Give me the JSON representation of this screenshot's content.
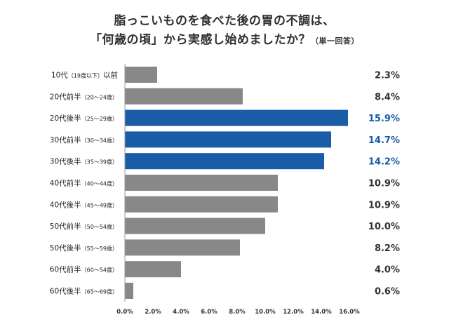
{
  "title_line1": "脂っこいものを食べた後の胃の不調は、",
  "title_line2": "「何歳の頃」から実感し始めましたか？",
  "title_suffix": "（単一回答）",
  "colors": {
    "gray": "#888888",
    "blue": "#1a5ca8",
    "value_blue": "#1a5ca8",
    "value_dark": "#333333"
  },
  "chart_data": {
    "type": "bar",
    "orientation": "horizontal",
    "categories": [
      {
        "main": "10代",
        "paren": "（19歳以下）",
        "after": "以前"
      },
      {
        "main": "20代前半",
        "paren": "（20～24歳）",
        "after": ""
      },
      {
        "main": "20代後半",
        "paren": "（25～29歳）",
        "after": ""
      },
      {
        "main": "30代前半",
        "paren": "（30～34歳）",
        "after": ""
      },
      {
        "main": "30代後半",
        "paren": "（35～39歳）",
        "after": ""
      },
      {
        "main": "40代前半",
        "paren": "（40～44歳）",
        "after": ""
      },
      {
        "main": "40代後半",
        "paren": "（45～49歳）",
        "after": ""
      },
      {
        "main": "50代前半",
        "paren": "（50～54歳）",
        "after": ""
      },
      {
        "main": "50代後半",
        "paren": "（55～59歳）",
        "after": ""
      },
      {
        "main": "60代前半",
        "paren": "（60～54歳）",
        "after": ""
      },
      {
        "main": "60代後半",
        "paren": "（65～69歳）",
        "after": ""
      }
    ],
    "values": [
      2.3,
      8.4,
      15.9,
      14.7,
      14.2,
      10.9,
      10.9,
      10.0,
      8.2,
      4.0,
      0.6
    ],
    "value_labels": [
      "2.3%",
      "8.4%",
      "15.9%",
      "14.7%",
      "14.2%",
      "10.9%",
      "10.9%",
      "10.0%",
      "8.2%",
      "4.0%",
      "0.6%"
    ],
    "highlighted": [
      false,
      false,
      true,
      true,
      true,
      false,
      false,
      false,
      false,
      false,
      false
    ],
    "x_ticks": [
      "0.0%",
      "2.0%",
      "4.0%",
      "6.0%",
      "8.0%",
      "10.0%",
      "12.0%",
      "14.0%",
      "16.0%"
    ],
    "xlim": [
      0,
      16
    ],
    "grid": false,
    "legend": "none"
  }
}
